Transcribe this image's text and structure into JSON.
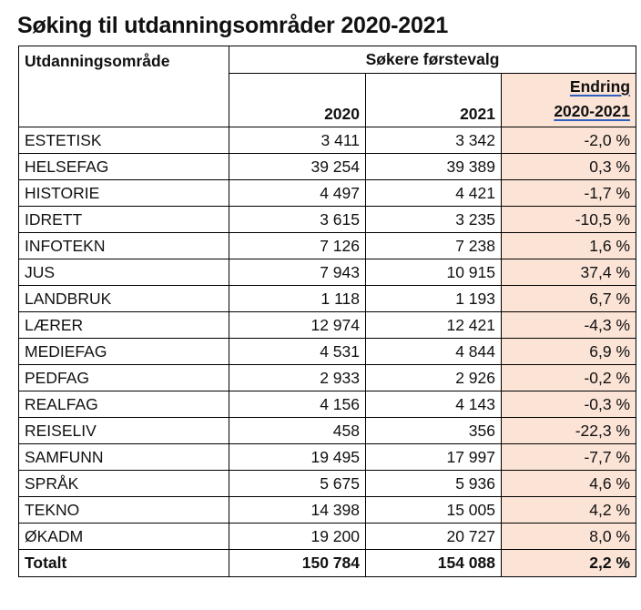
{
  "title": "Søking til utdanningsområder 2020-2021",
  "header": {
    "area_label": "Utdanningsområde",
    "group_label": "Søkere førstevalg",
    "year1": "2020",
    "year2": "2021",
    "change_line1": "Endring",
    "change_line2": "2020-2021"
  },
  "rows": [
    {
      "area": "ESTETISK",
      "y2020": "3 411",
      "y2021": "3 342",
      "change": "-2,0 %"
    },
    {
      "area": "HELSEFAG",
      "y2020": "39 254",
      "y2021": "39 389",
      "change": "0,3 %"
    },
    {
      "area": "HISTORIE",
      "y2020": "4 497",
      "y2021": "4 421",
      "change": "-1,7 %"
    },
    {
      "area": "IDRETT",
      "y2020": "3 615",
      "y2021": "3 235",
      "change": "-10,5 %"
    },
    {
      "area": "INFOTEKN",
      "y2020": "7 126",
      "y2021": "7 238",
      "change": "1,6 %"
    },
    {
      "area": "JUS",
      "y2020": "7 943",
      "y2021": "10 915",
      "change": "37,4 %"
    },
    {
      "area": "LANDBRUK",
      "y2020": "1 118",
      "y2021": "1 193",
      "change": "6,7 %"
    },
    {
      "area": "LÆRER",
      "y2020": "12 974",
      "y2021": "12 421",
      "change": "-4,3 %"
    },
    {
      "area": "MEDIEFAG",
      "y2020": "4 531",
      "y2021": "4 844",
      "change": "6,9 %"
    },
    {
      "area": "PEDFAG",
      "y2020": "2 933",
      "y2021": "2 926",
      "change": "-0,2 %"
    },
    {
      "area": "REALFAG",
      "y2020": "4 156",
      "y2021": "4 143",
      "change": "-0,3 %"
    },
    {
      "area": "REISELIV",
      "y2020": "458",
      "y2021": "356",
      "change": "-22,3 %"
    },
    {
      "area": "SAMFUNN",
      "y2020": "19 495",
      "y2021": "17 997",
      "change": "-7,7 %"
    },
    {
      "area": "SPRÅK",
      "y2020": "5 675",
      "y2021": "5 936",
      "change": "4,6 %"
    },
    {
      "area": "TEKNO",
      "y2020": "14 398",
      "y2021": "15 005",
      "change": "4,2 %"
    },
    {
      "area": "ØKADM",
      "y2020": "19 200",
      "y2021": "20 727",
      "change": "8,0 %"
    }
  ],
  "total": {
    "area": "Totalt",
    "y2020": "150 784",
    "y2021": "154 088",
    "change": "2,2 %"
  },
  "colors": {
    "highlight": "#fbe3d6",
    "underline": "#2f5fbf"
  }
}
